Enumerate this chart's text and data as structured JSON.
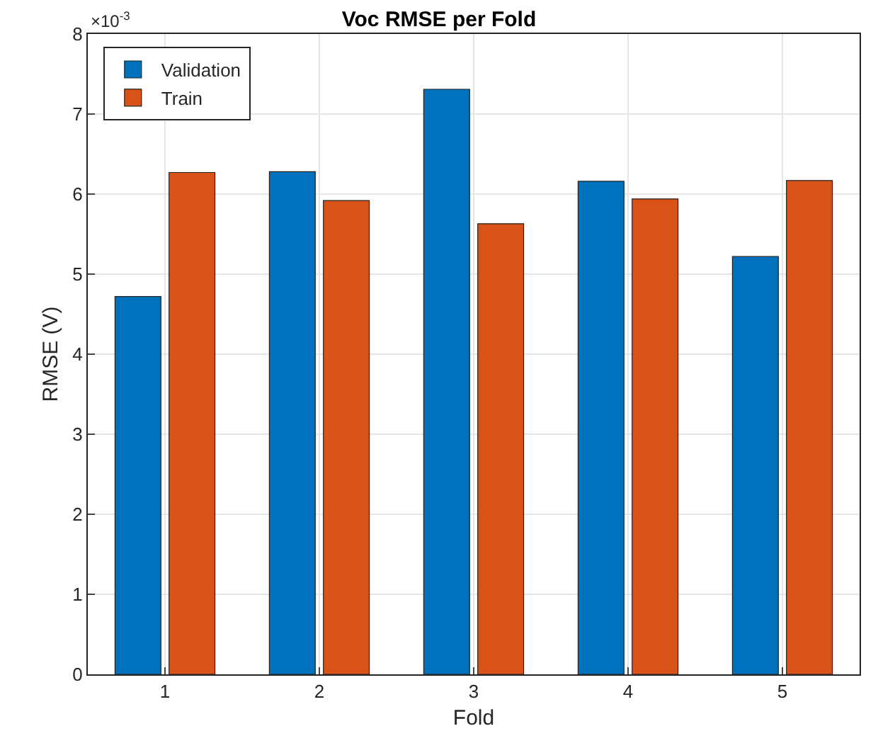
{
  "chart_data": {
    "type": "bar",
    "title": "Voc RMSE per Fold",
    "xlabel": "Fold",
    "ylabel": "RMSE (V)",
    "categories": [
      "1",
      "2",
      "3",
      "4",
      "5"
    ],
    "series": [
      {
        "name": "Validation",
        "color": "#0072bd",
        "values": [
          4.72,
          6.28,
          7.31,
          6.16,
          5.22
        ]
      },
      {
        "name": "Train",
        "color": "#d95319",
        "values": [
          6.27,
          5.92,
          5.63,
          5.94,
          6.17
        ]
      }
    ],
    "ylim": [
      0,
      8
    ],
    "yticks": [
      0,
      1,
      2,
      3,
      4,
      5,
      6,
      7,
      8
    ],
    "grid": true,
    "legend": "top left",
    "annotations": [
      "×10$^{-3}$"
    ]
  }
}
